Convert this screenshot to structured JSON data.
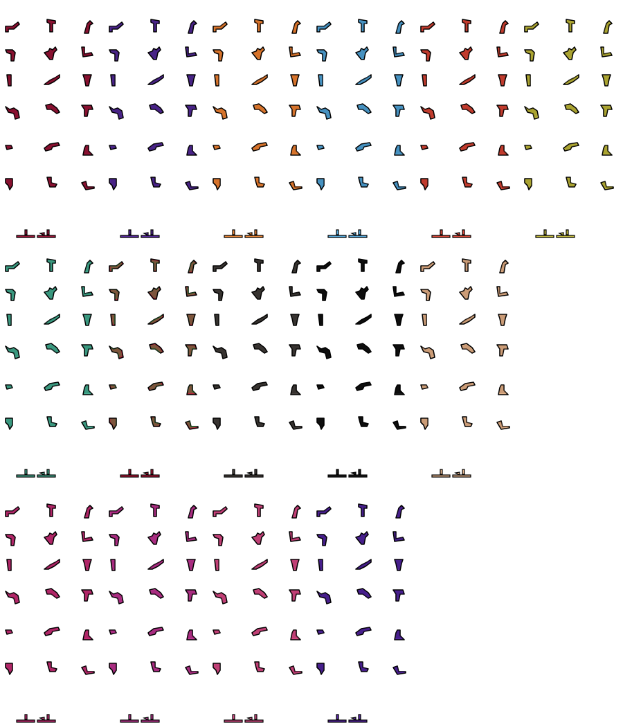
{
  "sheet": {
    "kind": "sprite-sheet",
    "description_visible_text": [],
    "palettes": [
      {
        "name": "crimson",
        "fill": "#a0163a",
        "shade": "#6a0c25"
      },
      {
        "name": "indigo",
        "fill": "#5a2ca0",
        "shade": "#331866"
      },
      {
        "name": "orange",
        "fill": "#f08a3a",
        "shade": "#b5561a"
      },
      {
        "name": "skyblue",
        "fill": "#5aaee0",
        "shade": "#2f6f99"
      },
      {
        "name": "red",
        "fill": "#e04a3a",
        "shade": "#9a2a1e"
      },
      {
        "name": "olive",
        "fill": "#c8c040",
        "shade": "#86801e"
      },
      {
        "name": "teal",
        "fill": "#4ab89a",
        "shade": "#277060"
      },
      {
        "name": "tricolor",
        "fill": "#c0183a",
        "shade": "#2ca040"
      },
      {
        "name": "charcoal",
        "fill": "#4a4440",
        "shade": "#221e1c"
      },
      {
        "name": "black",
        "fill": "#1a1a1a",
        "shade": "#000000"
      },
      {
        "name": "tan",
        "fill": "#e8b890",
        "shade": "#a87a58"
      },
      {
        "name": "magenta",
        "fill": "#d0307a",
        "shade": "#8a1a50"
      },
      {
        "name": "orchid",
        "fill": "#c83a9a",
        "shade": "#801c62"
      },
      {
        "name": "pink",
        "fill": "#e0508a",
        "shade": "#9a2a5a"
      },
      {
        "name": "violet",
        "fill": "#5a28a8",
        "shade": "#30146a"
      }
    ],
    "outline_color": "#000000",
    "background_color": "#ffffff"
  }
}
